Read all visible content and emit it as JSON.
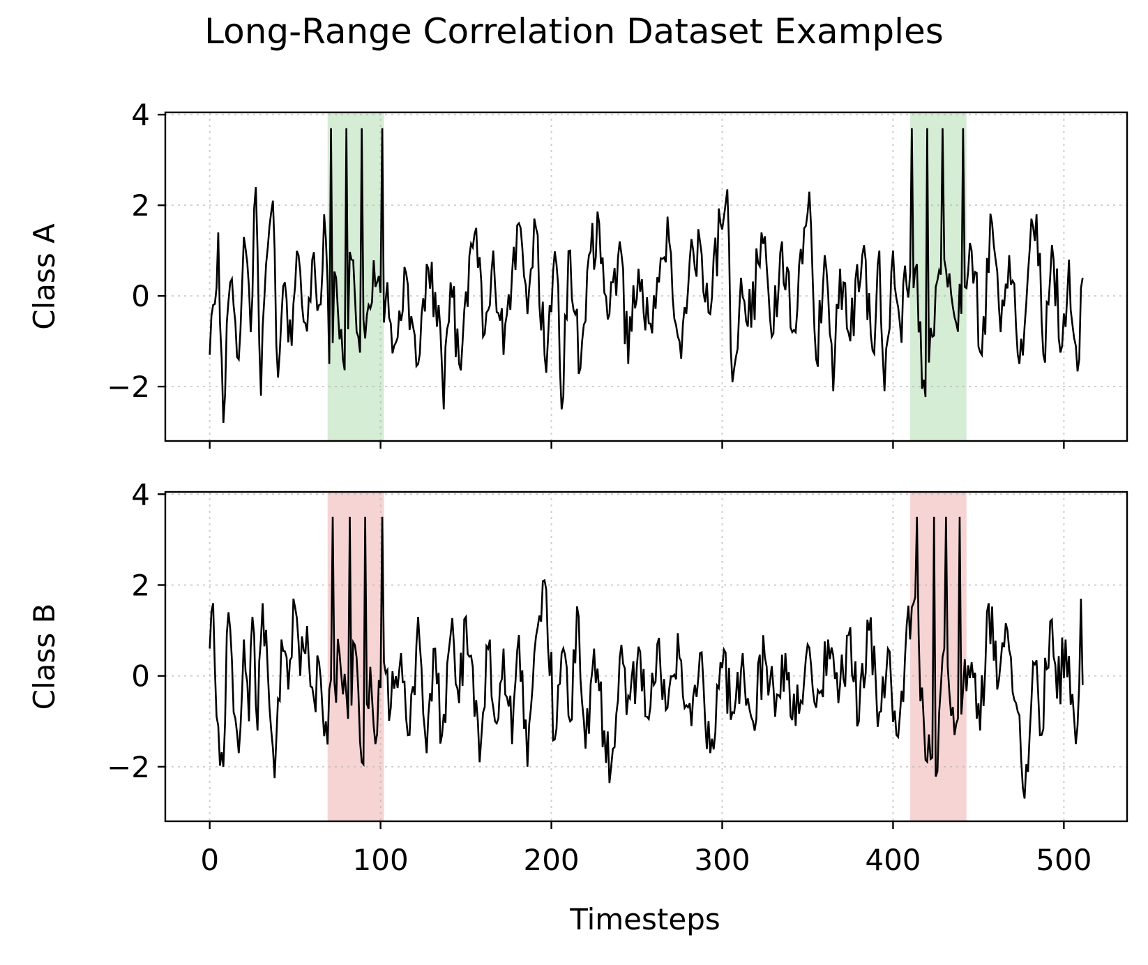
{
  "chart_data": {
    "type": "line",
    "title": "Long-Range Correlation Dataset Examples",
    "xlabel": "Timesteps",
    "xlim": [
      -26,
      537
    ],
    "xticks": [
      0,
      100,
      200,
      300,
      400,
      500
    ],
    "xtick_labels": [
      "0",
      "100",
      "200",
      "300",
      "400",
      "500"
    ],
    "grid": true,
    "line_color": "#000000",
    "series_length": 512,
    "panels": [
      {
        "name": "class-a",
        "ylabel": "Class A",
        "ylim": [
          -3.2,
          4.05
        ],
        "yticks": [
          -2,
          0,
          2,
          4
        ],
        "ytick_labels": [
          "−2",
          "0",
          "2",
          "4"
        ],
        "show_xtick_labels": false,
        "highlight_color": "#2ca02c",
        "highlight_regions": [
          [
            69,
            102
          ],
          [
            410,
            443
          ]
        ],
        "spike_value": 3.7,
        "spike_positions": [
          71,
          80,
          89,
          101,
          411,
          420,
          429,
          441
        ],
        "anchors": [
          [
            0,
            -1.3
          ],
          [
            2,
            -0.2
          ],
          [
            5,
            1.4
          ],
          [
            8,
            -2.8
          ],
          [
            12,
            0.3
          ],
          [
            17,
            -1.4
          ],
          [
            20,
            1.3
          ],
          [
            24,
            -0.8
          ],
          [
            27,
            2.4
          ],
          [
            30,
            -2.2
          ],
          [
            33,
            0.7
          ],
          [
            37,
            2.1
          ],
          [
            40,
            -1.8
          ],
          [
            44,
            0.3
          ],
          [
            48,
            -1.1
          ],
          [
            52,
            0.9
          ],
          [
            56,
            -0.6
          ],
          [
            60,
            0.8
          ],
          [
            64,
            -0.2
          ],
          [
            67,
            1.8
          ],
          [
            70,
            -1.5
          ],
          [
            74,
            0.4
          ],
          [
            78,
            -1.4
          ],
          [
            83,
            0.8
          ],
          [
            87,
            -0.9
          ],
          [
            93,
            -0.2
          ],
          [
            97,
            0.2
          ],
          [
            103,
            -0.1
          ],
          [
            108,
            -1.1
          ],
          [
            115,
            0.5
          ],
          [
            122,
            -1.5
          ],
          [
            128,
            0.6
          ],
          [
            134,
            -0.2
          ],
          [
            137,
            -2.5
          ],
          [
            141,
            0.3
          ],
          [
            146,
            -1.5
          ],
          [
            150,
            0.1
          ],
          [
            156,
            1.5
          ],
          [
            160,
            -0.9
          ],
          [
            166,
            1.0
          ],
          [
            172,
            -1.3
          ],
          [
            177,
            0.5
          ],
          [
            182,
            1.5
          ],
          [
            186,
            -0.4
          ],
          [
            191,
            1.5
          ],
          [
            196,
            -1.3
          ],
          [
            203,
            0.7
          ],
          [
            206,
            -2.5
          ],
          [
            211,
            1.0
          ],
          [
            217,
            -1.6
          ],
          [
            222,
            0.9
          ],
          [
            228,
            1.6
          ],
          [
            234,
            -0.4
          ],
          [
            240,
            1.2
          ],
          [
            245,
            -1.5
          ],
          [
            251,
            0.6
          ],
          [
            257,
            -0.6
          ],
          [
            263,
            0.3
          ],
          [
            269,
            1.2
          ],
          [
            275,
            -1.0
          ],
          [
            281,
            0.8
          ],
          [
            287,
            1.2
          ],
          [
            293,
            -0.4
          ],
          [
            299,
            1.6
          ],
          [
            303,
            2.35
          ],
          [
            306,
            -1.9
          ],
          [
            311,
            0.4
          ],
          [
            317,
            -0.7
          ],
          [
            323,
            1.4
          ],
          [
            329,
            -0.9
          ],
          [
            335,
            1.2
          ],
          [
            341,
            -0.8
          ],
          [
            347,
            0.7
          ],
          [
            351,
            2.3
          ],
          [
            355,
            -1.4
          ],
          [
            360,
            0.9
          ],
          [
            365,
            -2.1
          ],
          [
            369,
            0.6
          ],
          [
            375,
            -1.0
          ],
          [
            382,
            0.9
          ],
          [
            388,
            -1.2
          ],
          [
            392,
            1.0
          ],
          [
            395,
            -2.1
          ],
          [
            400,
            1.0
          ],
          [
            404,
            -0.6
          ],
          [
            408,
            0.2
          ],
          [
            413,
            0.6
          ],
          [
            418,
            -1.85
          ],
          [
            423,
            -0.9
          ],
          [
            430,
            0.8
          ],
          [
            437,
            -0.6
          ],
          [
            442,
            0.2
          ],
          [
            446,
            1.0
          ],
          [
            452,
            -1.3
          ],
          [
            458,
            1.6
          ],
          [
            463,
            -0.8
          ],
          [
            468,
            0.9
          ],
          [
            474,
            -1.5
          ],
          [
            479,
            0.5
          ],
          [
            484,
            1.8
          ],
          [
            488,
            -1.3
          ],
          [
            494,
            0.8
          ],
          [
            499,
            -1.1
          ],
          [
            503,
            0.8
          ],
          [
            507,
            -1.1
          ],
          [
            509,
            -1.4
          ],
          [
            511,
            0.4
          ]
        ]
      },
      {
        "name": "class-b",
        "ylabel": "Class B",
        "ylim": [
          -3.2,
          4.05
        ],
        "yticks": [
          -2,
          0,
          2,
          4
        ],
        "ytick_labels": [
          "−2",
          "0",
          "2",
          "4"
        ],
        "show_xtick_labels": true,
        "highlight_color": "#d62728",
        "highlight_regions": [
          [
            69,
            102
          ],
          [
            410,
            443
          ]
        ],
        "spike_value": 3.5,
        "spike_positions": [
          72,
          82,
          91,
          101,
          414,
          424,
          431,
          439
        ],
        "anchors": [
          [
            0,
            0.6
          ],
          [
            2,
            1.6
          ],
          [
            5,
            -1.1
          ],
          [
            8,
            -2.0
          ],
          [
            11,
            1.4
          ],
          [
            14,
            -0.8
          ],
          [
            17,
            -1.7
          ],
          [
            20,
            0.8
          ],
          [
            23,
            -1.0
          ],
          [
            25,
            1.3
          ],
          [
            28,
            -1.2
          ],
          [
            31,
            1.6
          ],
          [
            35,
            -0.7
          ],
          [
            38,
            -2.25
          ],
          [
            42,
            0.8
          ],
          [
            46,
            -0.3
          ],
          [
            49,
            1.7
          ],
          [
            53,
            0.0
          ],
          [
            57,
            1.1
          ],
          [
            61,
            -0.5
          ],
          [
            64,
            0.3
          ],
          [
            68,
            -1.0
          ],
          [
            72,
            -0.7
          ],
          [
            76,
            0.5
          ],
          [
            80,
            -0.4
          ],
          [
            86,
            0.4
          ],
          [
            89,
            -1.9
          ],
          [
            94,
            0.2
          ],
          [
            97,
            -1.5
          ],
          [
            102,
            0.3
          ],
          [
            106,
            -0.7
          ],
          [
            112,
            0.5
          ],
          [
            117,
            -1.3
          ],
          [
            122,
            1.3
          ],
          [
            127,
            -1.7
          ],
          [
            132,
            0.6
          ],
          [
            136,
            -1.3
          ],
          [
            141,
            0.9
          ],
          [
            146,
            -0.6
          ],
          [
            150,
            1.3
          ],
          [
            154,
            0.2
          ],
          [
            158,
            -1.9
          ],
          [
            163,
            0.6
          ],
          [
            167,
            -1.0
          ],
          [
            172,
            0.6
          ],
          [
            177,
            -1.5
          ],
          [
            181,
            0.9
          ],
          [
            186,
            -2.0
          ],
          [
            190,
            0.5
          ],
          [
            197,
            1.9
          ],
          [
            202,
            -1.4
          ],
          [
            206,
            0.5
          ],
          [
            211,
            -1.0
          ],
          [
            216,
            1.3
          ],
          [
            220,
            -1.6
          ],
          [
            225,
            0.6
          ],
          [
            231,
            -1.2
          ],
          [
            235,
            -2.0
          ],
          [
            240,
            0.4
          ],
          [
            246,
            -0.5
          ],
          [
            250,
            0.2
          ],
          [
            256,
            -0.9
          ],
          [
            262,
            0.7
          ],
          [
            268,
            -0.7
          ],
          [
            275,
            0.4
          ],
          [
            281,
            -0.6
          ],
          [
            287,
            0.5
          ],
          [
            293,
            -1.7
          ],
          [
            299,
            0.3
          ],
          [
            306,
            -0.8
          ],
          [
            312,
            0.5
          ],
          [
            318,
            -1.0
          ],
          [
            325,
            0.4
          ],
          [
            331,
            -0.9
          ],
          [
            337,
            0.5
          ],
          [
            343,
            -1.1
          ],
          [
            349,
            0.4
          ],
          [
            355,
            -0.7
          ],
          [
            362,
            0.8
          ],
          [
            368,
            -0.6
          ],
          [
            374,
            0.9
          ],
          [
            380,
            -1.0
          ],
          [
            386,
            1.0
          ],
          [
            392,
            -0.8
          ],
          [
            397,
            0.6
          ],
          [
            402,
            -1.3
          ],
          [
            407,
            0.4
          ],
          [
            412,
            1.6
          ],
          [
            418,
            -1.0
          ],
          [
            423,
            -1.8
          ],
          [
            426,
            -2.1
          ],
          [
            430,
            0.6
          ],
          [
            436,
            -1.3
          ],
          [
            441,
            -0.3
          ],
          [
            446,
            0.3
          ],
          [
            451,
            -1.2
          ],
          [
            456,
            1.6
          ],
          [
            461,
            -0.3
          ],
          [
            467,
            1.0
          ],
          [
            472,
            -0.6
          ],
          [
            477,
            -2.7
          ],
          [
            482,
            0.3
          ],
          [
            487,
            -1.3
          ],
          [
            492,
            1.2
          ],
          [
            496,
            -0.5
          ],
          [
            501,
            0.8
          ],
          [
            505,
            -0.4
          ],
          [
            508,
            -1.1
          ],
          [
            510,
            1.7
          ],
          [
            511,
            -0.2
          ]
        ]
      }
    ]
  }
}
